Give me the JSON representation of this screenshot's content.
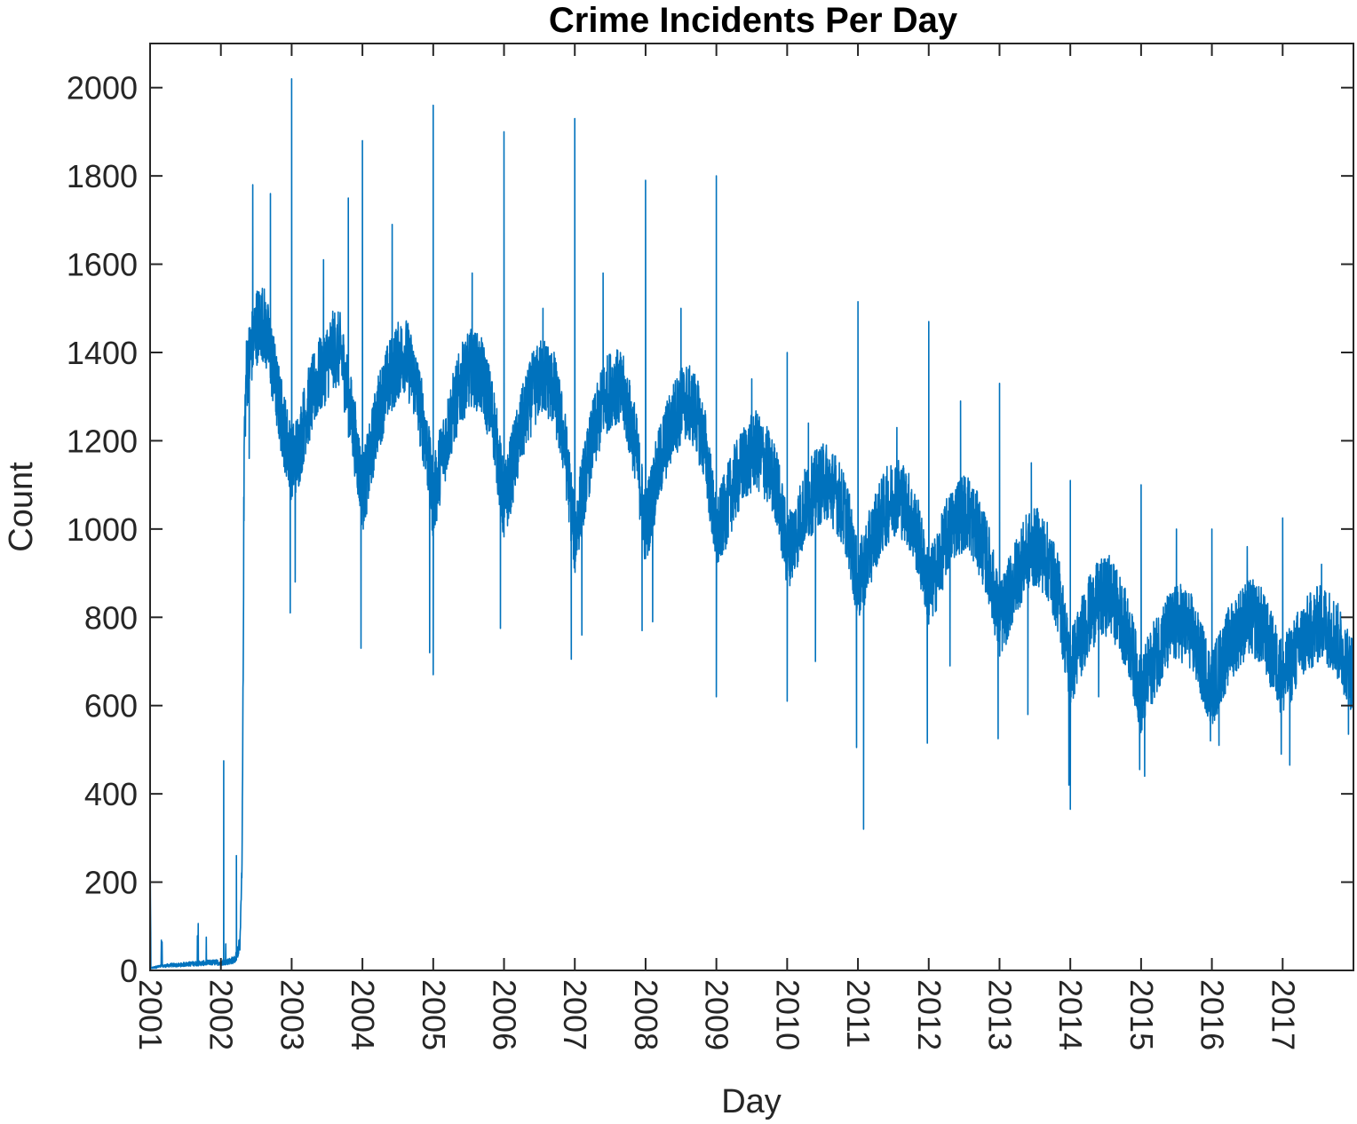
{
  "chart_data": {
    "type": "line",
    "title": "Crime Incidents Per Day",
    "xlabel": "Day",
    "ylabel": "Count",
    "xlim": [
      2001,
      2018
    ],
    "ylim": [
      0,
      2100
    ],
    "x_ticks": [
      "2001",
      "2002",
      "2003",
      "2004",
      "2005",
      "2006",
      "2007",
      "2008",
      "2009",
      "2010",
      "2011",
      "2012",
      "2013",
      "2014",
      "2015",
      "2016",
      "2017"
    ],
    "y_ticks": [
      0,
      200,
      400,
      600,
      800,
      1000,
      1200,
      1400,
      1600,
      1800,
      2000
    ],
    "grid": false,
    "box": true,
    "series": [
      {
        "color": "#0072BD",
        "points": [
          [
            2001.0,
            330
          ],
          [
            2001.01,
            5
          ],
          [
            2001.1,
            8
          ],
          [
            2001.2,
            10
          ],
          [
            2001.3,
            12
          ],
          [
            2001.4,
            12
          ],
          [
            2001.5,
            14
          ],
          [
            2001.6,
            15
          ],
          [
            2001.7,
            16
          ],
          [
            2001.8,
            17
          ],
          [
            2001.9,
            18
          ],
          [
            2002.0,
            18
          ],
          [
            2002.1,
            20
          ],
          [
            2002.2,
            25
          ],
          [
            2002.27,
            60
          ],
          [
            2002.3,
            250
          ],
          [
            2002.33,
            1200
          ],
          [
            2002.36,
            1350
          ],
          [
            2002.42,
            1400
          ],
          [
            2002.5,
            1460
          ],
          [
            2002.6,
            1470
          ],
          [
            2002.7,
            1400
          ],
          [
            2002.8,
            1300
          ],
          [
            2002.9,
            1220
          ],
          [
            2003.0,
            1150
          ],
          [
            2003.1,
            1180
          ],
          [
            2003.2,
            1260
          ],
          [
            2003.35,
            1330
          ],
          [
            2003.5,
            1380
          ],
          [
            2003.6,
            1410
          ],
          [
            2003.7,
            1400
          ],
          [
            2003.8,
            1300
          ],
          [
            2003.9,
            1200
          ],
          [
            2004.0,
            1080
          ],
          [
            2004.1,
            1150
          ],
          [
            2004.2,
            1250
          ],
          [
            2004.35,
            1330
          ],
          [
            2004.5,
            1380
          ],
          [
            2004.6,
            1400
          ],
          [
            2004.75,
            1330
          ],
          [
            2004.9,
            1200
          ],
          [
            2005.0,
            1060
          ],
          [
            2005.1,
            1150
          ],
          [
            2005.25,
            1250
          ],
          [
            2005.4,
            1330
          ],
          [
            2005.55,
            1370
          ],
          [
            2005.7,
            1340
          ],
          [
            2005.85,
            1250
          ],
          [
            2006.0,
            1050
          ],
          [
            2006.1,
            1130
          ],
          [
            2006.25,
            1230
          ],
          [
            2006.4,
            1310
          ],
          [
            2006.55,
            1350
          ],
          [
            2006.7,
            1320
          ],
          [
            2006.85,
            1200
          ],
          [
            2007.0,
            980
          ],
          [
            2007.1,
            1080
          ],
          [
            2007.25,
            1200
          ],
          [
            2007.4,
            1290
          ],
          [
            2007.55,
            1330
          ],
          [
            2007.7,
            1300
          ],
          [
            2007.85,
            1200
          ],
          [
            2008.0,
            1000
          ],
          [
            2008.1,
            1080
          ],
          [
            2008.25,
            1180
          ],
          [
            2008.4,
            1250
          ],
          [
            2008.55,
            1290
          ],
          [
            2008.7,
            1270
          ],
          [
            2008.85,
            1180
          ],
          [
            2009.0,
            980
          ],
          [
            2009.1,
            1030
          ],
          [
            2009.25,
            1100
          ],
          [
            2009.4,
            1150
          ],
          [
            2009.55,
            1180
          ],
          [
            2009.7,
            1150
          ],
          [
            2009.85,
            1100
          ],
          [
            2010.0,
            950
          ],
          [
            2010.1,
            980
          ],
          [
            2010.25,
            1050
          ],
          [
            2010.4,
            1090
          ],
          [
            2010.55,
            1110
          ],
          [
            2010.7,
            1080
          ],
          [
            2010.85,
            1020
          ],
          [
            2011.0,
            870
          ],
          [
            2011.1,
            920
          ],
          [
            2011.25,
            1000
          ],
          [
            2011.4,
            1050
          ],
          [
            2011.55,
            1080
          ],
          [
            2011.7,
            1050
          ],
          [
            2011.85,
            980
          ],
          [
            2012.0,
            860
          ],
          [
            2012.1,
            900
          ],
          [
            2012.25,
            980
          ],
          [
            2012.4,
            1030
          ],
          [
            2012.55,
            1040
          ],
          [
            2012.7,
            990
          ],
          [
            2012.85,
            920
          ],
          [
            2013.0,
            790
          ],
          [
            2013.1,
            830
          ],
          [
            2013.25,
            900
          ],
          [
            2013.4,
            950
          ],
          [
            2013.55,
            960
          ],
          [
            2013.7,
            920
          ],
          [
            2013.85,
            840
          ],
          [
            2014.0,
            680
          ],
          [
            2014.1,
            730
          ],
          [
            2014.25,
            800
          ],
          [
            2014.4,
            840
          ],
          [
            2014.55,
            850
          ],
          [
            2014.7,
            810
          ],
          [
            2014.85,
            740
          ],
          [
            2015.0,
            620
          ],
          [
            2015.1,
            670
          ],
          [
            2015.25,
            730
          ],
          [
            2015.4,
            770
          ],
          [
            2015.55,
            790
          ],
          [
            2015.7,
            770
          ],
          [
            2015.85,
            700
          ],
          [
            2016.0,
            640
          ],
          [
            2016.1,
            680
          ],
          [
            2016.25,
            740
          ],
          [
            2016.4,
            780
          ],
          [
            2016.55,
            800
          ],
          [
            2016.7,
            780
          ],
          [
            2016.85,
            720
          ],
          [
            2017.0,
            660
          ],
          [
            2017.1,
            690
          ],
          [
            2017.25,
            740
          ],
          [
            2017.4,
            770
          ],
          [
            2017.55,
            790
          ],
          [
            2017.7,
            770
          ],
          [
            2017.85,
            720
          ],
          [
            2017.95,
            680
          ]
        ],
        "noise": 90,
        "spikes": [
          [
            2002.04,
            475
          ],
          [
            2002.22,
            260
          ],
          [
            2002.45,
            1780
          ],
          [
            2002.7,
            1760
          ],
          [
            2003.0,
            2020
          ],
          [
            2003.45,
            1610
          ],
          [
            2003.8,
            1750
          ],
          [
            2004.0,
            1880
          ],
          [
            2004.42,
            1690
          ],
          [
            2005.0,
            1960
          ],
          [
            2005.55,
            1580
          ],
          [
            2006.0,
            1900
          ],
          [
            2006.55,
            1500
          ],
          [
            2007.0,
            1930
          ],
          [
            2007.4,
            1580
          ],
          [
            2008.0,
            1790
          ],
          [
            2008.5,
            1500
          ],
          [
            2009.0,
            1800
          ],
          [
            2009.5,
            1340
          ],
          [
            2010.0,
            1400
          ],
          [
            2010.3,
            1240
          ],
          [
            2011.0,
            1515
          ],
          [
            2011.55,
            1230
          ],
          [
            2012.0,
            1470
          ],
          [
            2012.45,
            1290
          ],
          [
            2013.0,
            1330
          ],
          [
            2013.45,
            1150
          ],
          [
            2014.0,
            1110
          ],
          [
            2014.55,
            940
          ],
          [
            2015.0,
            1100
          ],
          [
            2015.5,
            1000
          ],
          [
            2016.0,
            1000
          ],
          [
            2016.5,
            960
          ],
          [
            2017.0,
            1025
          ],
          [
            2017.55,
            920
          ]
        ],
        "dips": [
          [
            2002.4,
            1160
          ],
          [
            2002.98,
            810
          ],
          [
            2003.05,
            880
          ],
          [
            2003.98,
            730
          ],
          [
            2004.95,
            720
          ],
          [
            2005.0,
            670
          ],
          [
            2005.95,
            775
          ],
          [
            2006.95,
            705
          ],
          [
            2007.1,
            760
          ],
          [
            2007.95,
            770
          ],
          [
            2008.1,
            790
          ],
          [
            2009.0,
            620
          ],
          [
            2010.0,
            610
          ],
          [
            2010.4,
            700
          ],
          [
            2010.98,
            505
          ],
          [
            2011.08,
            320
          ],
          [
            2011.98,
            515
          ],
          [
            2012.3,
            690
          ],
          [
            2012.98,
            525
          ],
          [
            2013.4,
            580
          ],
          [
            2013.98,
            420
          ],
          [
            2014.0,
            365
          ],
          [
            2014.4,
            620
          ],
          [
            2014.98,
            455
          ],
          [
            2015.05,
            440
          ],
          [
            2015.98,
            520
          ],
          [
            2016.1,
            510
          ],
          [
            2016.98,
            490
          ],
          [
            2017.1,
            465
          ],
          [
            2017.93,
            535
          ]
        ]
      }
    ]
  }
}
